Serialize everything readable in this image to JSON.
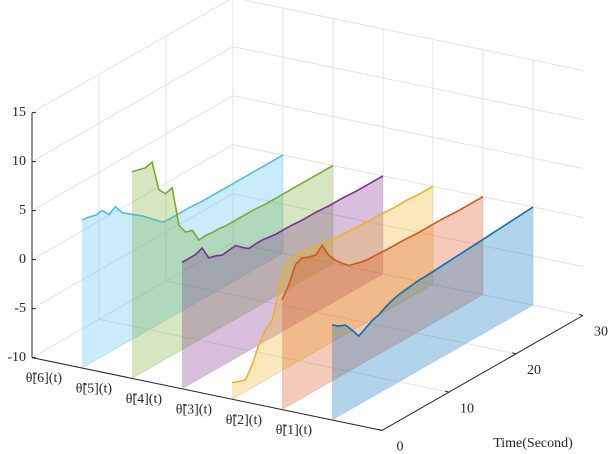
{
  "chart_data": {
    "type": "waterfall3d",
    "xlabel": "Time(Second)",
    "x": [
      0,
      1,
      2,
      3,
      4,
      5,
      6,
      7,
      8,
      9,
      10,
      11,
      12,
      13,
      14,
      16,
      18,
      20,
      22,
      24,
      26,
      28,
      30
    ],
    "xlim": [
      0,
      30
    ],
    "xticks": [
      0,
      10,
      20,
      30
    ],
    "zlim": [
      -10,
      15
    ],
    "zticks": [
      -10,
      -5,
      0,
      5,
      10,
      15
    ],
    "grid": true,
    "categories": [
      "θ̃[1](t)",
      "θ̃[2](t)",
      "θ̃[3](t)",
      "θ̃[4](t)",
      "θ̃[5](t)",
      "θ̃[6](t)"
    ],
    "series": [
      {
        "color": "#0072bd",
        "values": [
          -0.3,
          -0.8,
          -1.1,
          -2,
          -3,
          -2.6,
          -2.2,
          -2,
          -1.6,
          -1.3,
          -1.1,
          -1,
          -0.9,
          -0.8,
          -0.8,
          -0.7,
          -0.6,
          -0.5,
          -0.4,
          -0.3,
          -0.2,
          -0.1,
          0
        ]
      },
      {
        "color": "#d95319",
        "values": [
          1.2,
          2.3,
          4,
          4.3,
          4,
          3.8,
          4.4,
          3,
          2.1,
          1.4,
          0.8,
          0.6,
          0.4,
          0.3,
          0.3,
          0.2,
          0.2,
          0.1,
          0.1,
          0.1,
          0,
          0,
          0
        ]
      },
      {
        "color": "#edb120",
        "values": [
          -8.3,
          -8.6,
          -8.8,
          -7.7,
          -6,
          -4.9,
          -4.3,
          -1.6,
          0.6,
          0.9,
          1,
          0.9,
          0.8,
          0.6,
          0.5,
          0.4,
          0.3,
          0.2,
          0.2,
          0.1,
          0.1,
          0,
          0
        ]
      },
      {
        "color": "#7e2f8e",
        "values": [
          2.9,
          2.9,
          2.9,
          3.2,
          1.8,
          1.6,
          1.3,
          1.4,
          1.5,
          0.9,
          0.4,
          0.5,
          0.5,
          0.4,
          0.3,
          0.3,
          0.2,
          0.2,
          0.1,
          0.1,
          0,
          0,
          0
        ]
      },
      {
        "color": "#77ac30",
        "values": [
          11.1,
          10.9,
          10.7,
          10.9,
          7.7,
          6.9,
          7.1,
          2.9,
          1.8,
          1.6,
          0.2,
          0.3,
          0.2,
          0.2,
          0.1,
          0.1,
          0.1,
          0,
          0,
          0,
          0,
          0,
          0
        ]
      },
      {
        "color": "#4dbeee",
        "values": [
          5.1,
          5,
          4.8,
          4.9,
          4.1,
          4.5,
          3.5,
          3,
          2.5,
          2,
          1.4,
          0.8,
          0.2,
          0.1,
          0.1,
          0.1,
          0,
          0,
          0,
          0,
          0,
          0,
          0
        ]
      }
    ]
  }
}
